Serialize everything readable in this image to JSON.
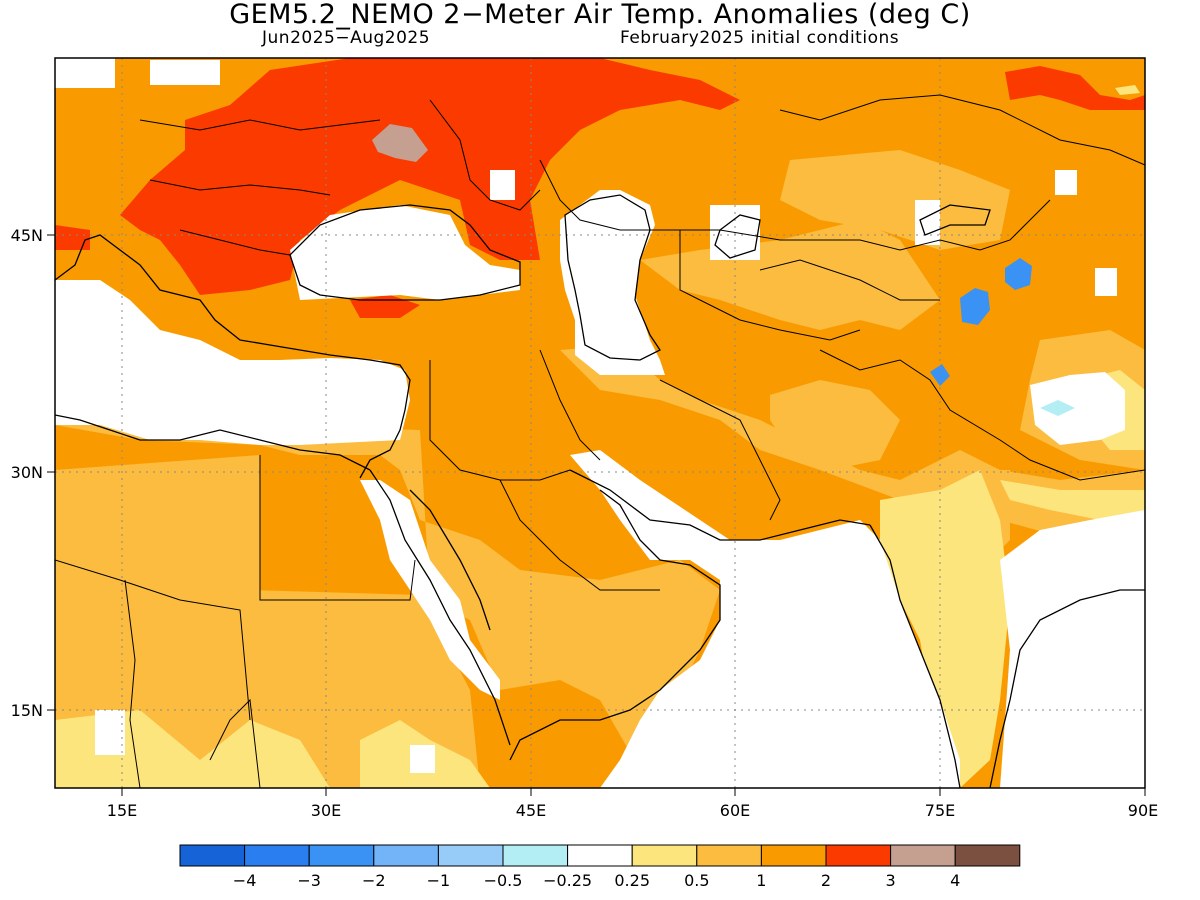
{
  "title": "GEM5.2_NEMO 2−Meter Air Temp. Anomalies (deg C)",
  "period": "Jun2025−Aug2025",
  "init": "February2025 initial conditions",
  "lon_ticks": [
    "15E",
    "30E",
    "45E",
    "60E",
    "75E",
    "90E"
  ],
  "lat_ticks": [
    "45N",
    "30N",
    "15N"
  ],
  "colorbar": {
    "colors": [
      "#1563d6",
      "#2a7ef0",
      "#3a92f5",
      "#72b4f7",
      "#96ccf7",
      "#b2eef3",
      "#ffffff",
      "#fde57d",
      "#fbbc40",
      "#f99b00",
      "#fb3a00",
      "#c59f8f",
      "#7b5040"
    ],
    "labels": [
      "−4",
      "−3",
      "−2",
      "−1",
      "−0.5",
      "−0.25",
      "0.25",
      "0.5",
      "1",
      "2",
      "3",
      "4"
    ]
  },
  "palette": {
    "anom_0_5_1": "#fbbc40",
    "anom_1_2": "#f99b00",
    "anom_2_3": "#fb3a00",
    "anom_0_25_0_5": "#fde57d",
    "anom_3_4": "#c59f8f",
    "neg_blue": "#3a92f5",
    "neg_light": "#b2eef3"
  }
}
